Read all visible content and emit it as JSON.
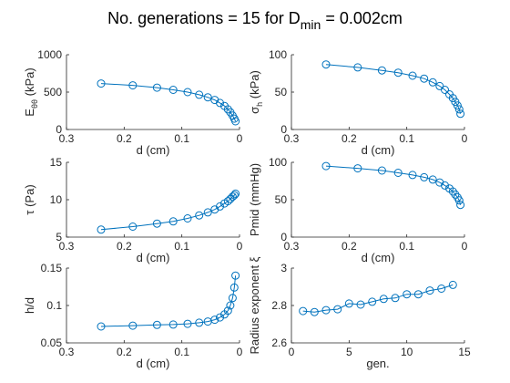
{
  "figure": {
    "title_main": "No. generations = 15 for D",
    "title_sub": "min",
    "title_tail": " = 0.002cm"
  },
  "colors": {
    "series": "#0072BD",
    "axis": "#262626",
    "background": "#ffffff"
  },
  "chart_data": [
    {
      "type": "line",
      "xlabel": "d (cm)",
      "ylabel": "E_θθ (kPa)",
      "ylabel_main": "E",
      "ylabel_sub": "θθ",
      "ylabel_tail": " (kPa)",
      "xlim": [
        0.3,
        0
      ],
      "x_reversed": true,
      "ylim": [
        0,
        1000
      ],
      "xticks": [
        0.3,
        0.2,
        0.1,
        0
      ],
      "xtick_labels": [
        "0.3",
        "0.2",
        "0.1",
        "0"
      ],
      "yticks": [
        0,
        500,
        1000
      ],
      "ytick_labels": [
        "0",
        "500",
        "1000"
      ],
      "x": [
        0.24,
        0.185,
        0.143,
        0.115,
        0.09,
        0.07,
        0.055,
        0.043,
        0.034,
        0.026,
        0.02,
        0.016,
        0.012,
        0.009,
        0.007
      ],
      "y": [
        615,
        590,
        560,
        530,
        500,
        465,
        430,
        395,
        355,
        315,
        270,
        230,
        185,
        145,
        110
      ]
    },
    {
      "type": "line",
      "xlabel": "d (cm)",
      "ylabel": "σ_h (kPa)",
      "ylabel_main": "σ",
      "ylabel_sub": "h",
      "ylabel_tail": " (kPa)",
      "xlim": [
        0.3,
        0
      ],
      "x_reversed": true,
      "ylim": [
        0,
        100
      ],
      "xticks": [
        0.3,
        0.2,
        0.1,
        0
      ],
      "xtick_labels": [
        "0.3",
        "0.2",
        "0.1",
        "0"
      ],
      "yticks": [
        0,
        50,
        100
      ],
      "ytick_labels": [
        "0",
        "50",
        "100"
      ],
      "x": [
        0.24,
        0.185,
        0.143,
        0.115,
        0.09,
        0.07,
        0.055,
        0.043,
        0.034,
        0.026,
        0.02,
        0.016,
        0.012,
        0.009,
        0.007
      ],
      "y": [
        87,
        83,
        79,
        76,
        72,
        68,
        63,
        58,
        53,
        47,
        42,
        37,
        32,
        27,
        21
      ]
    },
    {
      "type": "line",
      "xlabel": "d (cm)",
      "ylabel": "τ (Pa)",
      "ylabel_main": "τ",
      "ylabel_sub": "",
      "ylabel_tail": " (Pa)",
      "xlim": [
        0.3,
        0
      ],
      "x_reversed": true,
      "ylim": [
        5,
        15
      ],
      "xticks": [
        0.3,
        0.2,
        0.1,
        0
      ],
      "xtick_labels": [
        "0.3",
        "0.2",
        "0.1",
        "0"
      ],
      "yticks": [
        5,
        10,
        15
      ],
      "ytick_labels": [
        "5",
        "10",
        "15"
      ],
      "x": [
        0.24,
        0.185,
        0.143,
        0.115,
        0.09,
        0.07,
        0.055,
        0.043,
        0.034,
        0.026,
        0.02,
        0.016,
        0.012,
        0.009,
        0.007
      ],
      "y": [
        6.0,
        6.4,
        6.8,
        7.1,
        7.5,
        7.9,
        8.3,
        8.7,
        9.1,
        9.5,
        9.8,
        10.1,
        10.4,
        10.6,
        10.8
      ]
    },
    {
      "type": "line",
      "xlabel": "d (cm)",
      "ylabel": "Pmid (mmHg)",
      "ylabel_main": "Pmid (mmHg)",
      "ylabel_sub": "",
      "ylabel_tail": "",
      "xlim": [
        0.3,
        0
      ],
      "x_reversed": true,
      "ylim": [
        0,
        100
      ],
      "xticks": [
        0.3,
        0.2,
        0.1,
        0
      ],
      "xtick_labels": [
        "0.3",
        "0.2",
        "0.1",
        "0"
      ],
      "yticks": [
        0,
        50,
        100
      ],
      "ytick_labels": [
        "0",
        "50",
        "100"
      ],
      "x": [
        0.24,
        0.185,
        0.143,
        0.115,
        0.09,
        0.07,
        0.055,
        0.043,
        0.034,
        0.026,
        0.02,
        0.016,
        0.012,
        0.009,
        0.007
      ],
      "y": [
        95,
        92,
        89,
        86,
        83,
        80,
        77,
        73,
        69,
        65,
        61,
        57,
        53,
        49,
        43
      ]
    },
    {
      "type": "line",
      "xlabel": "d (cm)",
      "ylabel": "h/d",
      "ylabel_main": "h/d",
      "ylabel_sub": "",
      "ylabel_tail": "",
      "xlim": [
        0.3,
        0
      ],
      "x_reversed": true,
      "ylim": [
        0.05,
        0.15
      ],
      "xticks": [
        0.3,
        0.2,
        0.1,
        0
      ],
      "xtick_labels": [
        "0.3",
        "0.2",
        "0.1",
        "0"
      ],
      "yticks": [
        0.05,
        0.1,
        0.15
      ],
      "ytick_labels": [
        "0.05",
        "0.1",
        "0.15"
      ],
      "x": [
        0.24,
        0.185,
        0.143,
        0.115,
        0.09,
        0.07,
        0.055,
        0.043,
        0.034,
        0.026,
        0.02,
        0.016,
        0.012,
        0.009,
        0.007
      ],
      "y": [
        0.072,
        0.073,
        0.074,
        0.0745,
        0.0755,
        0.077,
        0.0785,
        0.081,
        0.084,
        0.088,
        0.093,
        0.1,
        0.11,
        0.124,
        0.14
      ]
    },
    {
      "type": "line",
      "xlabel": "gen.",
      "ylabel": "Radius exponent ξ",
      "ylabel_main": "Radius exponent ξ",
      "ylabel_sub": "",
      "ylabel_tail": "",
      "xlim": [
        0,
        15
      ],
      "x_reversed": false,
      "ylim": [
        2.6,
        3
      ],
      "xticks": [
        0,
        5,
        10,
        15
      ],
      "xtick_labels": [
        "0",
        "5",
        "10",
        "15"
      ],
      "yticks": [
        2.6,
        2.8,
        3
      ],
      "ytick_labels": [
        "2.6",
        "2.8",
        "3"
      ],
      "x": [
        1,
        2,
        3,
        4,
        5,
        6,
        7,
        8,
        9,
        10,
        11,
        12,
        13,
        14
      ],
      "y": [
        2.77,
        2.765,
        2.775,
        2.78,
        2.81,
        2.805,
        2.82,
        2.835,
        2.84,
        2.86,
        2.86,
        2.88,
        2.89,
        2.91
      ]
    }
  ]
}
